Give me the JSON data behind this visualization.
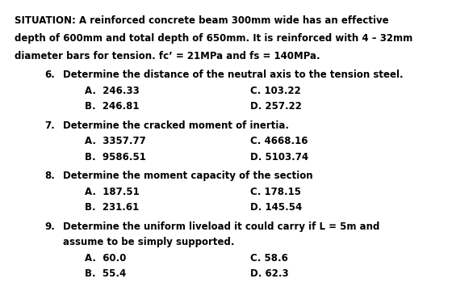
{
  "bg_color": "#ffffff",
  "text_color": "#000000",
  "situation_line1": "SITUATION: A reinforced concrete beam 300mm wide has an effective",
  "situation_line2": "depth of 600mm and total depth of 650mm. It is reinforced with 4 – 32mm",
  "situation_line3": "diameter bars for tension. fc’ = 21MPa and fs = 140MPa.",
  "q6_num": "6.",
  "q6_text": "Determine the distance of the neutral axis to the tension steel.",
  "q6_A": "A.  246.33",
  "q6_B": "B.  246.81",
  "q6_C": "C. 103.22",
  "q6_D": "D. 257.22",
  "q7_num": "7.",
  "q7_text": "Determine the cracked moment of inertia.",
  "q7_A": "A.  3357.77",
  "q7_B": "B.  9586.51",
  "q7_C": "C. 4668.16",
  "q7_D": "D. 5103.74",
  "q8_num": "8.",
  "q8_text": "Determine the moment capacity of the section",
  "q8_A": "A.  187.51",
  "q8_B": "B.  231.61",
  "q8_C": "C. 178.15",
  "q8_D": "D. 145.54",
  "q9_num": "9.",
  "q9_text": "Determine the uniform liveload it could carry if L = 5m and",
  "q9_text2": "assume to be simply supported.",
  "q9_A": "A.  60.0",
  "q9_B": "B.  55.4",
  "q9_C": "C. 58.6",
  "q9_D": "D. 62.3",
  "fs": 8.5,
  "font_family": "DejaVu Sans",
  "fig_w": 5.6,
  "fig_h": 3.81,
  "dpi": 100
}
